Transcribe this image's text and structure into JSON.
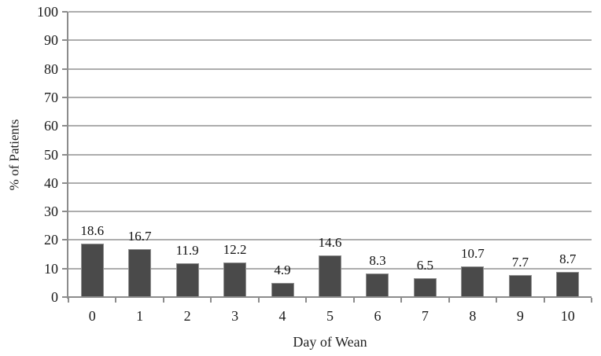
{
  "chart_data": {
    "type": "bar",
    "title": "",
    "xlabel": "Day of Wean",
    "ylabel": "% of Patients",
    "categories": [
      "0",
      "1",
      "2",
      "3",
      "4",
      "5",
      "6",
      "7",
      "8",
      "9",
      "10"
    ],
    "values": [
      18.6,
      16.7,
      11.9,
      12.2,
      4.9,
      14.6,
      8.3,
      6.5,
      10.7,
      7.7,
      8.7
    ],
    "data_labels": [
      "18.6",
      "16.7",
      "11.9",
      "12.2",
      "4.9",
      "14.6",
      "8.3",
      "6.5",
      "10.7",
      "7.7",
      "8.7"
    ],
    "ylim": [
      0,
      100
    ],
    "yticks": [
      0,
      10,
      20,
      30,
      40,
      50,
      60,
      70,
      80,
      90,
      100
    ],
    "grid": true,
    "legend": "none",
    "colors": {
      "bar_fill": "#4a4a4a",
      "bar_border": "#909090",
      "gridline": "#adadad",
      "axis_line": "#8c8c8c",
      "text": "#1a1a1a",
      "background": "#ffffff"
    }
  }
}
